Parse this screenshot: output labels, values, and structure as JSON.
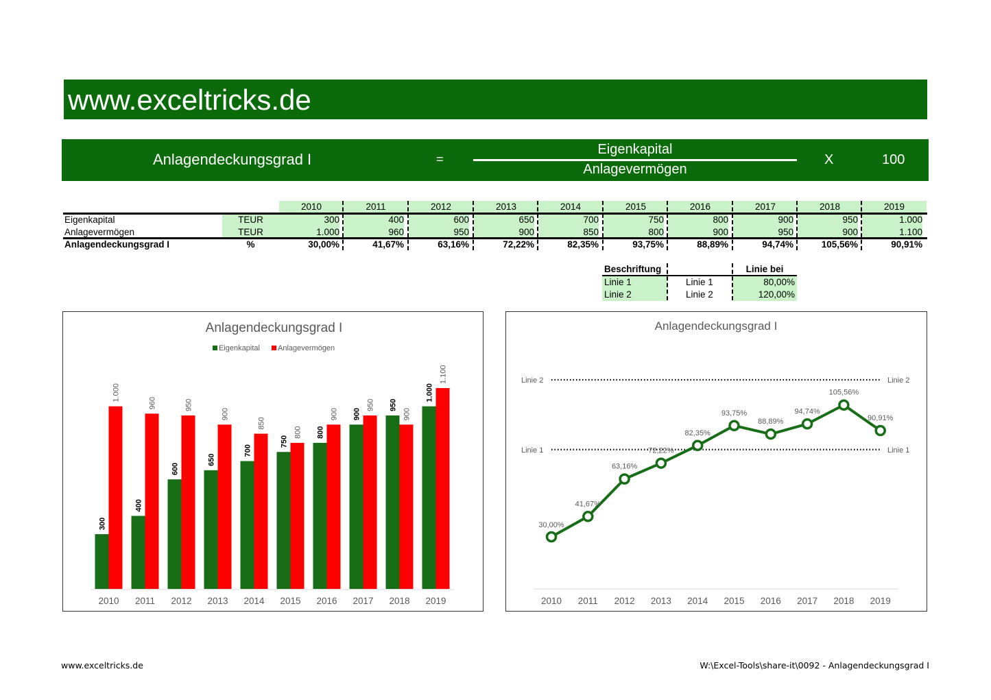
{
  "banner": {
    "text": "www.exceltricks.de"
  },
  "formula": {
    "name": "Anlagendeckungsgrad I",
    "equals": "=",
    "numerator": "Eigenkapital",
    "denominator": "Anlagevermögen",
    "times": "X",
    "factor": "100"
  },
  "table": {
    "years": [
      "2010",
      "2011",
      "2012",
      "2013",
      "2014",
      "2015",
      "2016",
      "2017",
      "2018",
      "2019"
    ],
    "rows": [
      {
        "label": "Eigenkapital",
        "unit": "TEUR",
        "values": [
          "300",
          "400",
          "600",
          "650",
          "700",
          "750",
          "800",
          "900",
          "950",
          "1.000"
        ]
      },
      {
        "label": "Anlagevermögen",
        "unit": "TEUR",
        "values": [
          "1.000",
          "960",
          "950",
          "900",
          "850",
          "800",
          "900",
          "950",
          "900",
          "1.100"
        ]
      },
      {
        "label": "Anlagendeckungsgrad I",
        "unit": "%",
        "values": [
          "30,00%",
          "41,67%",
          "63,16%",
          "72,22%",
          "82,35%",
          "93,75%",
          "88,89%",
          "94,74%",
          "105,56%",
          "90,91%"
        ]
      }
    ]
  },
  "lines_table": {
    "header_left": "Beschriftung",
    "header_right": "Linie bei",
    "rows": [
      {
        "name": "Linie 1",
        "label": "Linie 1",
        "value": "80,00%"
      },
      {
        "name": "Linie 2",
        "label": "Linie 2",
        "value": "120,00%"
      }
    ]
  },
  "chart_data": [
    {
      "type": "bar",
      "title": "Anlagendeckungsgrad I",
      "legend_position": "top",
      "categories": [
        "2010",
        "2011",
        "2012",
        "2013",
        "2014",
        "2015",
        "2016",
        "2017",
        "2018",
        "2019"
      ],
      "series": [
        {
          "name": "Eigenkapital",
          "color": "#176e17",
          "values": [
            300,
            400,
            600,
            650,
            700,
            750,
            800,
            900,
            950,
            1000
          ],
          "labels": [
            "300",
            "400",
            "600",
            "650",
            "700",
            "750",
            "800",
            "900",
            "950",
            "1.000"
          ]
        },
        {
          "name": "Anlagevermögen",
          "color": "#ff0000",
          "values": [
            1000,
            960,
            950,
            900,
            850,
            800,
            900,
            950,
            900,
            1100
          ],
          "labels": [
            "1.000",
            "960",
            "950",
            "900",
            "850",
            "800",
            "900",
            "950",
            "900",
            "1.100"
          ]
        }
      ],
      "ylim": [
        0,
        1100
      ],
      "grid": false
    },
    {
      "type": "line",
      "title": "Anlagendeckungsgrad I",
      "categories": [
        "2010",
        "2011",
        "2012",
        "2013",
        "2014",
        "2015",
        "2016",
        "2017",
        "2018",
        "2019"
      ],
      "series": [
        {
          "color": "#176e17",
          "values": [
            30.0,
            41.67,
            63.16,
            72.22,
            82.35,
            93.75,
            88.89,
            94.74,
            105.56,
            90.91
          ],
          "labels": [
            "30,00%",
            "41,67%",
            "63,16%",
            "72,22%",
            "82,35%",
            "93,75%",
            "88,89%",
            "94,74%",
            "105,56%",
            "90,91%"
          ]
        }
      ],
      "reference_lines": [
        {
          "label": "Linie 1",
          "value": 80
        },
        {
          "label": "Linie 2",
          "value": 120
        }
      ],
      "grid": false
    }
  ],
  "footer": {
    "left": "www.exceltricks.de",
    "right": "W:\\Excel-Tools\\share-it\\0092 - Anlagendeckungsgrad I"
  }
}
